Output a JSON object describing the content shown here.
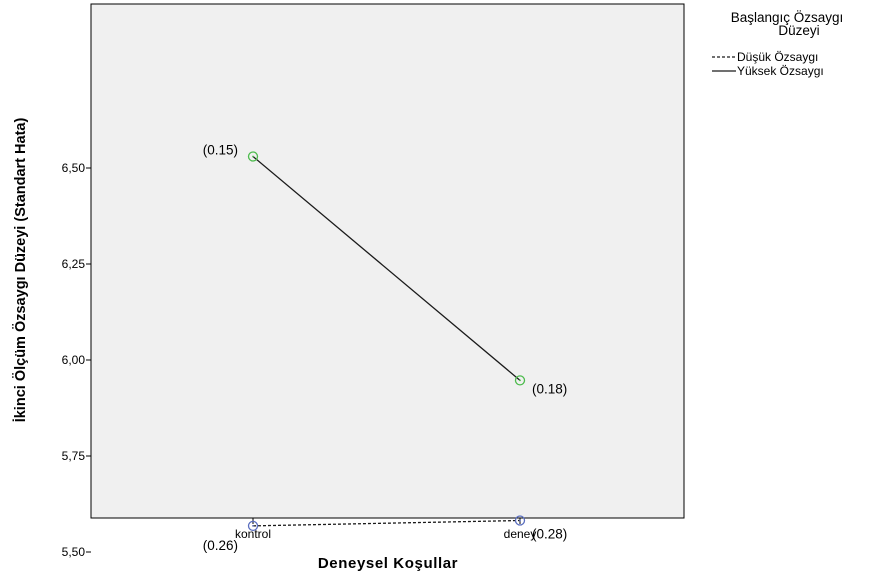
{
  "chart_data": {
    "type": "line",
    "xlabel": "Deneysel Koşullar",
    "ylabel": "İkinci Ölçüm Özsaygı Düzeyi (Standart Hata)",
    "categories": [
      "kontrol",
      "deney"
    ],
    "ylim": [
      5.32,
      6.66
    ],
    "yticks": [
      5.5,
      5.75,
      6.0,
      6.25,
      6.5
    ],
    "ytick_labels": [
      "5,50",
      "5,75",
      "6,00",
      "6,25",
      "6,50"
    ],
    "grid": false,
    "legend_position": "top-right",
    "legend_title_lines": [
      "Başlangıç Özsaygı",
      "Düzeyi"
    ],
    "series": [
      {
        "name": "Düşük Özsaygı",
        "values": [
          5.568,
          5.582
        ],
        "labels": [
          "(0.26)",
          "(0.28)"
        ],
        "line_style": "dashed",
        "marker_color": "#5a6ebf"
      },
      {
        "name": "Yüksek Özsaygı",
        "values": [
          6.53,
          5.947
        ],
        "labels": [
          "(0.15)",
          "(0.18)"
        ],
        "line_style": "solid",
        "marker_color": "#4cbb4c"
      }
    ],
    "colors": {
      "plot_background": "#f0f0f0",
      "line": "#1a1a1a"
    }
  }
}
